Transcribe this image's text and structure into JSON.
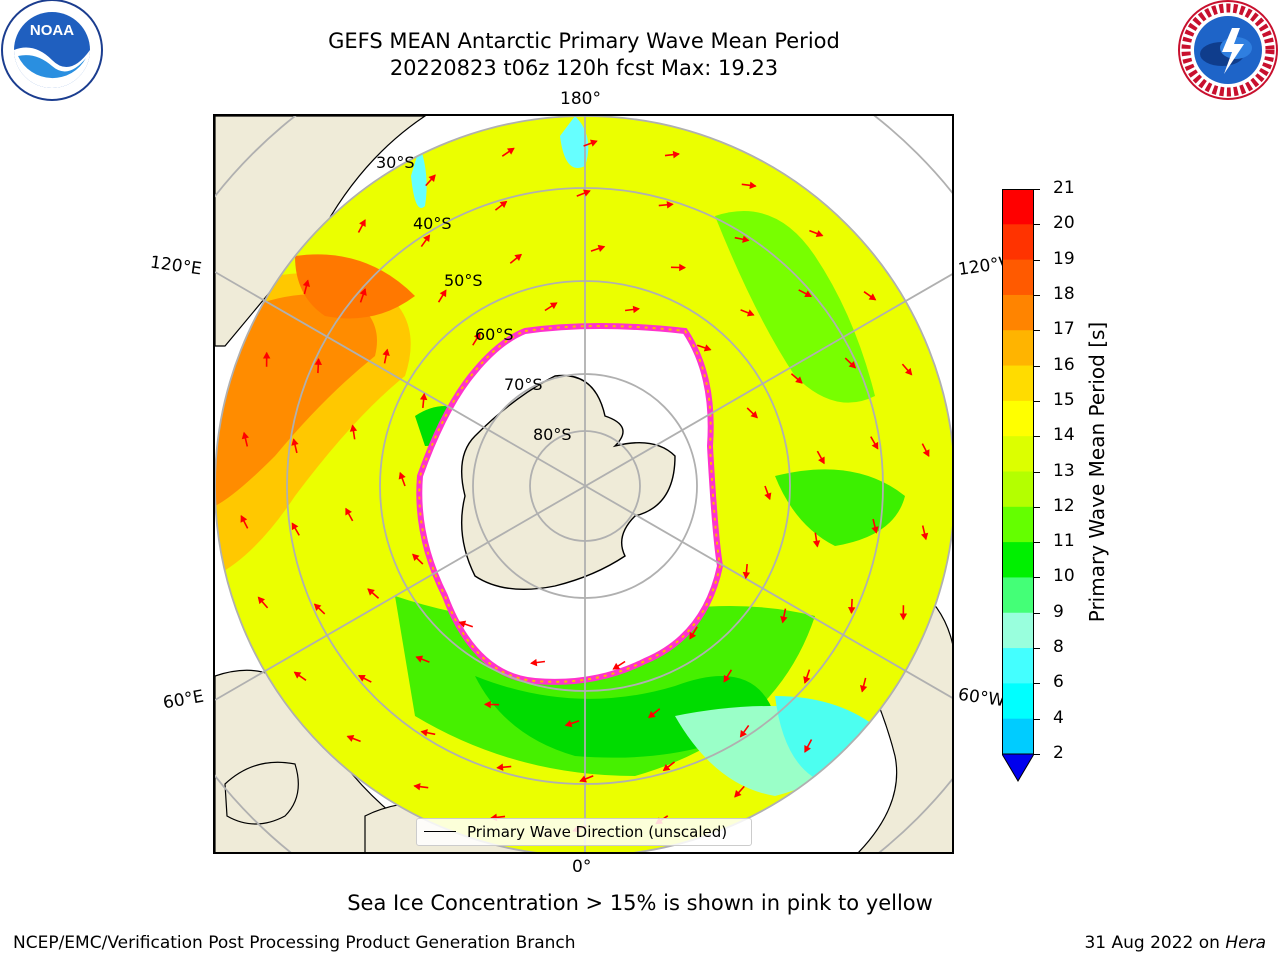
{
  "title": {
    "line1": "GEFS MEAN Antarctic Primary Wave Mean Period",
    "line2": "20220823 t06z 120h fcst   Max: 19.23"
  },
  "logos": {
    "left": "NOAA",
    "left_ring": "NATIONAL OCEANIC AND ATMOSPHERIC ADMINISTRATION · U.S. DEPARTMENT OF COMMERCE",
    "right_ring": "NATIONAL WEATHER SERVICE"
  },
  "map": {
    "projection": "south-polar-stereographic",
    "lon_labels": {
      "top": "180°",
      "bottom": "0°",
      "left_upper": "120°E",
      "left_lower": "60°E",
      "right_upper": "120°W",
      "right_lower": "60°W"
    },
    "lat_labels": [
      "30°S",
      "40°S",
      "50°S",
      "60°S",
      "70°S",
      "80°S"
    ],
    "legend_label": "Primary Wave Direction (unscaled)"
  },
  "colorbar": {
    "label": "Primary Wave Mean Period [s]",
    "ticks": [
      "21",
      "20",
      "19",
      "18",
      "17",
      "16",
      "15",
      "14",
      "13",
      "12",
      "11",
      "10",
      "9",
      "8",
      "6",
      "4",
      "2"
    ],
    "colors": [
      "#ff0000",
      "#ff3300",
      "#ff5a00",
      "#ff8400",
      "#ffb400",
      "#ffdc00",
      "#ffff00",
      "#dcff00",
      "#b4ff00",
      "#64ff00",
      "#00f000",
      "#44ff77",
      "#99ffdd",
      "#44ffff",
      "#00ffff",
      "#00ccff",
      "#0066ff"
    ],
    "extend_color": "#0000ee"
  },
  "caption": "Sea Ice Concentration > 15% is shown in pink to yellow",
  "footer": {
    "left": "NCEP/EMC/Verification Post Processing Product Generation Branch",
    "date": "31 Aug 2022 on ",
    "machine": "Hera"
  }
}
